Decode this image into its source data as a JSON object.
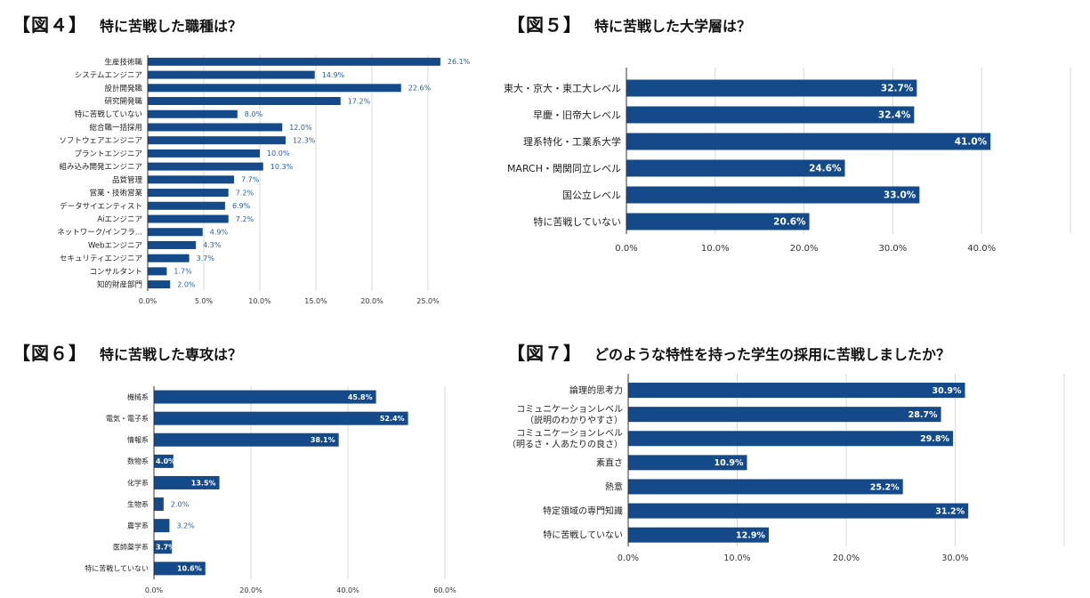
{
  "colors": {
    "bar": "#154a8a",
    "grid": "#d9d9d9",
    "axis": "#333333",
    "label_outside": "#2a5ea8",
    "label_inside": "#ffffff"
  },
  "figures": [
    {
      "number": "【図４】",
      "question": "特に苦戦した職種は？"
    },
    {
      "number": "【図５】",
      "question": "特に苦戦した大学層は？"
    },
    {
      "number": "【図６】",
      "question": "特に苦戦した専攻は？"
    },
    {
      "number": "【図７】",
      "question": "どのような特性を持った学生の採用に苦戦しましたか？"
    }
  ],
  "chart_data": [
    {
      "type": "bar",
      "orientation": "horizontal",
      "categories": [
        "生産技術職",
        "システムエンジニア",
        "設計開発職",
        "研究開発職",
        "特に苦戦していない",
        "総合職一括採用",
        "ソフトウェアエンジニア",
        "プラントエンジニア",
        "組み込み開発エンジニア",
        "品質管理",
        "営業・技術営業",
        "データサイエンティスト",
        "Aiエンジニア",
        "ネットワーク/インフラ...",
        "Webエンジニア",
        "セキュリティエンジニア",
        "コンサルタント",
        "知的財産部門"
      ],
      "values": [
        26.1,
        14.9,
        22.6,
        17.2,
        8.0,
        12.0,
        12.3,
        10.0,
        10.3,
        7.7,
        7.2,
        6.9,
        7.2,
        4.9,
        4.3,
        3.7,
        1.7,
        2.0
      ],
      "value_labels": [
        "26.1%",
        "14.9%",
        "22.6%",
        "17.2%",
        "8.0%",
        "12.0%",
        "12.3%",
        "10.0%",
        "10.3%",
        "7.7%",
        "7.2%",
        "6.9%",
        "7.2%",
        "4.9%",
        "4.3%",
        "3.7%",
        "1.7%",
        "2.0%"
      ],
      "xlim": [
        0,
        25
      ],
      "ticks": [
        "0.0%",
        "5.0%",
        "10.0%",
        "15.0%",
        "20.0%",
        "25.0%"
      ],
      "tick_values": [
        0,
        5,
        10,
        15,
        20,
        25
      ],
      "grid": true,
      "label_position": "outside"
    },
    {
      "type": "bar",
      "orientation": "horizontal",
      "categories": [
        "東大・京大・東工大レベル",
        "早慶・旧帝大レベル",
        "理系特化・工業系大学",
        "MARCH・関関同立レベル",
        "国公立レベル",
        "特に苦戦していない"
      ],
      "values": [
        32.7,
        32.4,
        41.0,
        24.6,
        33.0,
        20.6
      ],
      "value_labels": [
        "32.7%",
        "32.4%",
        "41.0%",
        "24.6%",
        "33.0%",
        "20.6%"
      ],
      "xlim": [
        0,
        50
      ],
      "ticks": [
        "0.0%",
        "10.0%",
        "20.0%",
        "30.0%",
        "40.0%"
      ],
      "tick_values": [
        0,
        10,
        20,
        30,
        40
      ],
      "grid": true,
      "label_position": "inside"
    },
    {
      "type": "bar",
      "orientation": "horizontal",
      "categories": [
        "機械系",
        "電気・電子系",
        "情報系",
        "数物系",
        "化学系",
        "生物系",
        "農学系",
        "医師薬学系",
        "特に苦戦していない"
      ],
      "values": [
        45.8,
        52.4,
        38.1,
        4.0,
        13.5,
        2.0,
        3.2,
        3.7,
        10.6
      ],
      "value_labels": [
        "45.8%",
        "52.4%",
        "38.1%",
        "4.0%",
        "13.5%",
        "2.0%",
        "3.2%",
        "3.7%",
        "10.6%"
      ],
      "xlim": [
        0,
        60
      ],
      "ticks": [
        "0.0%",
        "20.0%",
        "40.0%",
        "60.0%"
      ],
      "tick_values": [
        0,
        20,
        40,
        60
      ],
      "grid": true,
      "label_position": "mixed"
    },
    {
      "type": "bar",
      "orientation": "horizontal",
      "categories": [
        [
          "論理的思考力"
        ],
        [
          "コミュニケーションレベル",
          "（説明のわかりやすさ）"
        ],
        [
          "コミュニケーションレベル",
          "（明るさ・人あたりの良さ）"
        ],
        [
          "素直さ"
        ],
        [
          "熱意"
        ],
        [
          "特定領域の専門知識"
        ],
        [
          "特に苦戦していない"
        ]
      ],
      "values": [
        30.9,
        28.7,
        29.8,
        10.9,
        25.2,
        31.2,
        12.9
      ],
      "value_labels": [
        "30.9%",
        "28.7%",
        "29.8%",
        "10.9%",
        "25.2%",
        "31.2%",
        "12.9%"
      ],
      "xlim": [
        0,
        40
      ],
      "ticks": [
        "0.0%",
        "10.0%",
        "20.0%",
        "30.0%"
      ],
      "tick_values": [
        0,
        10,
        20,
        30
      ],
      "grid": true,
      "label_position": "inside"
    }
  ]
}
